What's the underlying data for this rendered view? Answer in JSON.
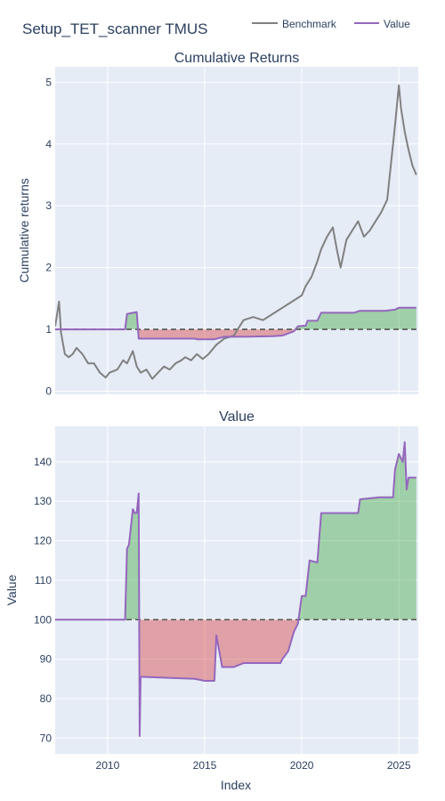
{
  "figure": {
    "title": "Setup_TET_scanner TMUS",
    "xlabel": "Index"
  },
  "legend": [
    {
      "label": "Benchmark",
      "color": "#808080"
    },
    {
      "label": "Value",
      "color": "#9467bd"
    }
  ],
  "colors": {
    "plot_bg": "#e5ecf6",
    "benchmark": "#808080",
    "value": "#9467bd",
    "gain_fill": "rgba(44,160,44,0.38)",
    "loss_fill": "rgba(214,39,40,0.38)"
  },
  "chart_data": [
    {
      "type": "line",
      "title": "Cumulative Returns",
      "xlabel": "",
      "ylabel": "Cumulative returns",
      "xlim": [
        2007.3,
        2026.0
      ],
      "ylim": [
        -0.05,
        5.25
      ],
      "xticks": [
        2010,
        2015,
        2020,
        2025
      ],
      "yticks": [
        0,
        1,
        2,
        3,
        4,
        5
      ],
      "grid": true,
      "legend": "top-right",
      "baseline": 1,
      "series": [
        {
          "name": "Benchmark",
          "x": [
            2007.3,
            2007.5,
            2007.6,
            2007.8,
            2008.0,
            2008.2,
            2008.4,
            2008.7,
            2009.0,
            2009.3,
            2009.6,
            2009.9,
            2010.1,
            2010.5,
            2010.8,
            2011.0,
            2011.3,
            2011.5,
            2011.7,
            2012.0,
            2012.3,
            2012.6,
            2012.9,
            2013.2,
            2013.5,
            2013.8,
            2014.0,
            2014.3,
            2014.6,
            2014.9,
            2015.2,
            2015.6,
            2016.0,
            2016.5,
            2017.0,
            2017.5,
            2018.0,
            2018.5,
            2019.0,
            2019.5,
            2020.0,
            2020.2,
            2020.5,
            2020.8,
            2021.0,
            2021.3,
            2021.6,
            2021.8,
            2022.0,
            2022.3,
            2022.6,
            2022.9,
            2023.2,
            2023.5,
            2023.8,
            2024.1,
            2024.4,
            2024.6,
            2024.8,
            2025.0,
            2025.1,
            2025.3,
            2025.5,
            2025.7,
            2025.9
          ],
          "values": [
            1.05,
            1.45,
            0.95,
            0.6,
            0.55,
            0.6,
            0.7,
            0.6,
            0.45,
            0.45,
            0.3,
            0.22,
            0.3,
            0.35,
            0.5,
            0.45,
            0.65,
            0.4,
            0.3,
            0.35,
            0.2,
            0.3,
            0.4,
            0.35,
            0.45,
            0.5,
            0.55,
            0.5,
            0.6,
            0.52,
            0.6,
            0.75,
            0.85,
            0.9,
            1.15,
            1.2,
            1.15,
            1.25,
            1.35,
            1.45,
            1.55,
            1.7,
            1.85,
            2.1,
            2.3,
            2.5,
            2.65,
            2.3,
            2.0,
            2.45,
            2.6,
            2.75,
            2.5,
            2.6,
            2.75,
            2.9,
            3.1,
            3.7,
            4.3,
            4.95,
            4.6,
            4.2,
            3.9,
            3.65,
            3.5
          ]
        },
        {
          "name": "Value",
          "x": [
            2007.3,
            2010.9,
            2011.0,
            2011.5,
            2011.6,
            2014.5,
            2014.6,
            2015.5,
            2016.0,
            2016.8,
            2017.0,
            2018.5,
            2019.0,
            2019.6,
            2019.8,
            2020.2,
            2020.3,
            2020.8,
            2021.0,
            2022.7,
            2023.0,
            2024.3,
            2024.8,
            2025.0,
            2025.5,
            2025.9
          ],
          "values": [
            1.0,
            1.0,
            1.25,
            1.28,
            0.85,
            0.85,
            0.84,
            0.84,
            0.88,
            0.88,
            0.88,
            0.89,
            0.9,
            0.97,
            1.05,
            1.06,
            1.14,
            1.14,
            1.27,
            1.27,
            1.3,
            1.3,
            1.32,
            1.35,
            1.35,
            1.35
          ]
        }
      ]
    },
    {
      "type": "line",
      "title": "Value",
      "xlabel": "Index",
      "ylabel": "Value",
      "xlim": [
        2007.3,
        2026.0
      ],
      "ylim": [
        66,
        149
      ],
      "xticks": [
        2010,
        2015,
        2020,
        2025
      ],
      "yticks": [
        70,
        80,
        90,
        100,
        110,
        120,
        130,
        140
      ],
      "grid": true,
      "baseline": 100,
      "series": [
        {
          "name": "Value",
          "x": [
            2007.3,
            2010.9,
            2011.0,
            2011.1,
            2011.3,
            2011.4,
            2011.5,
            2011.6,
            2011.65,
            2011.7,
            2011.8,
            2014.5,
            2015.0,
            2015.5,
            2015.6,
            2015.9,
            2016.5,
            2017.0,
            2018.0,
            2018.9,
            2019.0,
            2019.3,
            2019.6,
            2019.8,
            2020.0,
            2020.2,
            2020.4,
            2020.8,
            2021.0,
            2021.1,
            2022.0,
            2022.9,
            2023.0,
            2024.0,
            2024.7,
            2024.8,
            2025.0,
            2025.2,
            2025.3,
            2025.4,
            2025.5,
            2025.9
          ],
          "values": [
            100,
            100,
            118,
            119,
            128,
            127,
            127,
            132,
            70.5,
            85.5,
            85.5,
            85,
            84.5,
            84.5,
            96,
            88,
            88,
            89,
            89,
            89,
            90,
            92,
            97,
            99,
            106,
            106,
            115,
            114.5,
            127,
            127,
            127,
            127,
            130.5,
            131,
            131,
            138,
            142,
            140,
            145,
            133,
            136,
            136
          ]
        }
      ]
    }
  ]
}
